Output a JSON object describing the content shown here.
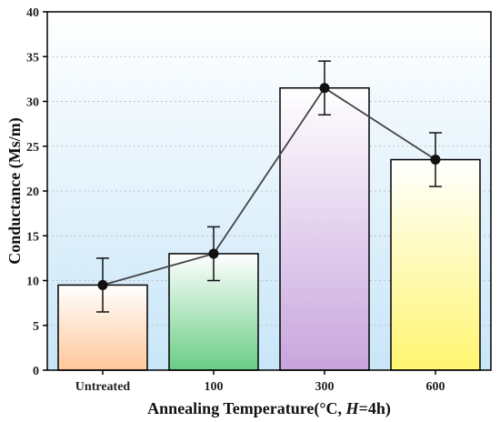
{
  "chart_data": {
    "type": "bar",
    "categories": [
      "Untreated",
      "100",
      "300",
      "600"
    ],
    "values": [
      9.5,
      13.0,
      31.5,
      23.5
    ],
    "errors": [
      3.0,
      3.0,
      3.0,
      3.0
    ],
    "overlay_line": true,
    "xlabel": "Annealing Temperature(°C, H=4h)",
    "xlabel_parts": [
      "Annealing Temperature(°C, ",
      "H",
      "=4h)"
    ],
    "ylabel": "Conductance (Ms/m)",
    "ylim": [
      0,
      40
    ],
    "yticks": [
      0,
      5,
      10,
      15,
      20,
      25,
      30,
      35,
      40
    ],
    "grid": true,
    "bar_gradients": [
      {
        "top": "#ffffff",
        "bottom": "#ffc79a"
      },
      {
        "top": "#ffffff",
        "bottom": "#69cd85"
      },
      {
        "top": "#ffffff",
        "bottom": "#c8a5dd"
      },
      {
        "top": "#ffffff",
        "bottom": "#fff570"
      }
    ],
    "background_gradient": {
      "top": "#ffffff",
      "bottom": "#c8e6f8"
    },
    "line_color": "#444444",
    "marker_color": "#111111"
  }
}
